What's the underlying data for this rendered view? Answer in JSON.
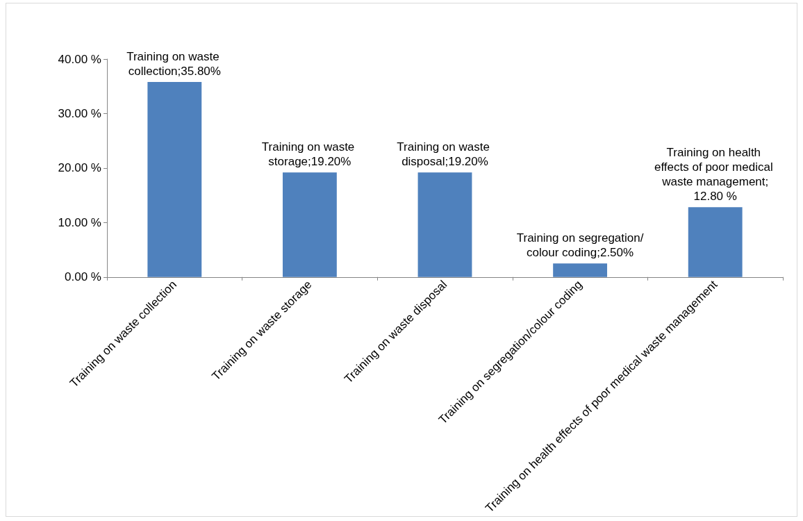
{
  "chart_data": {
    "type": "bar",
    "categories": [
      "Training on waste collection",
      "Training on waste storage",
      "Training on waste disposal",
      "Training on segregation/colour coding",
      "Training on health effects of poor medical waste management"
    ],
    "values": [
      35.8,
      19.2,
      19.2,
      2.5,
      12.8
    ],
    "color": "#4f81bd",
    "value_labels": [
      "Training on waste collection;35.80%",
      "Training on waste storage;19.20%",
      "Training on waste disposal;19.20%",
      "Training on segregation/colour coding;2.50%",
      "Training on health effects of poor medical waste management;12.80 %"
    ],
    "ylim": [
      0,
      40
    ],
    "yticks": [
      {
        "value": 0,
        "label": "0.00 %"
      },
      {
        "value": 10,
        "label": "10.00 %"
      },
      {
        "value": 20,
        "label": "20.00 %"
      },
      {
        "value": 30,
        "label": "30.00 %"
      },
      {
        "value": 40,
        "label": "40.00 %"
      }
    ],
    "grid": false
  }
}
